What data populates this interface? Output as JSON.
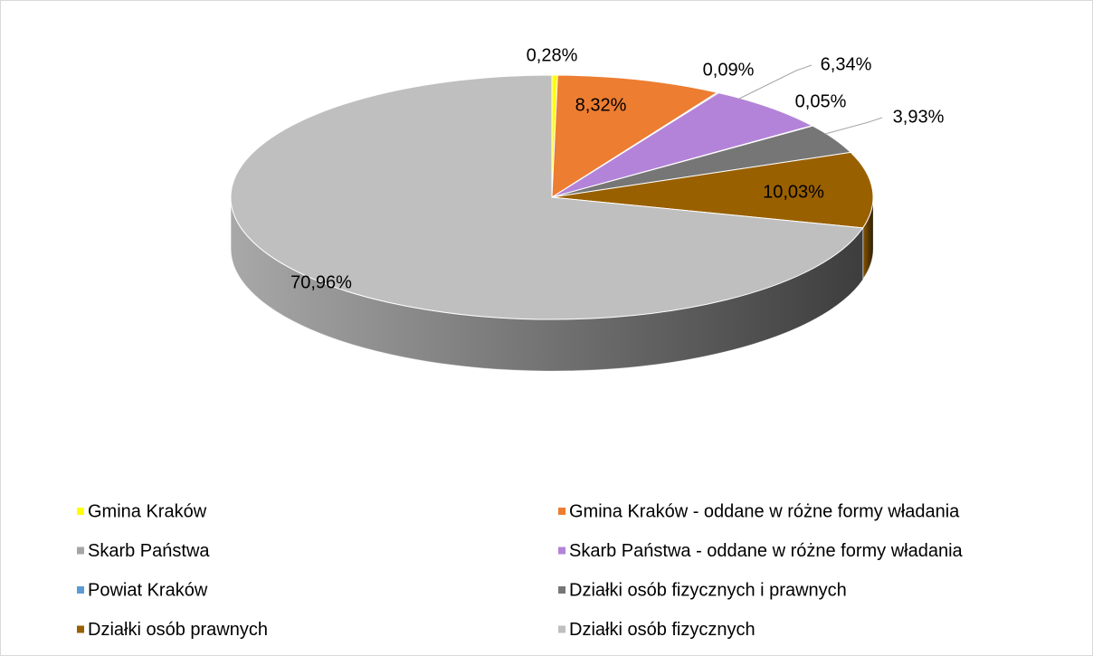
{
  "chart_data": {
    "type": "pie3d",
    "categories": [
      "Gmina Kraków",
      "Gmina Kraków - oddane w różne formy władania",
      "Skarb Państwa",
      "Skarb Państwa - oddane w różne formy władania",
      "Powiat Kraków",
      "Działki osób fizycznych i prawnych",
      "Działki osób prawnych",
      "Działki osób fizycznych"
    ],
    "values": [
      0.28,
      8.32,
      0.09,
      6.34,
      0.05,
      3.93,
      10.03,
      70.96
    ],
    "value_labels": [
      "0,28%",
      "8,32%",
      "0,09%",
      "6,34%",
      "0,05%",
      "3,93%",
      "10,03%",
      "70,96%"
    ],
    "colors": [
      "#ffff00",
      "#ed7d31",
      "#a5a5a5",
      "#b383d9",
      "#5b9bd5",
      "#767676",
      "#996000",
      "#bfbfbf"
    ],
    "legend": "bottom"
  }
}
